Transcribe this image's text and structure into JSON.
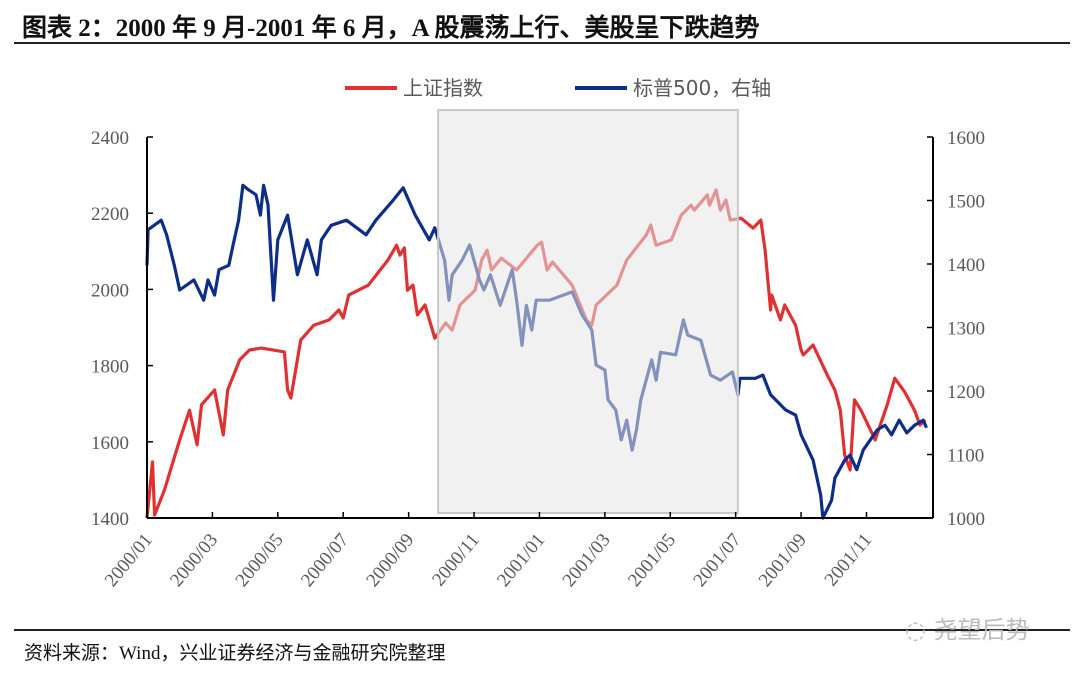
{
  "title": "图表 2：2000 年 9 月-2001 年 6 月，A 股震荡上行、美股呈下跌趋势",
  "source": "资料来源：Wind，兴业证券经济与金融研究院整理",
  "watermark": "尧望后势",
  "chart_data": {
    "type": "line",
    "title": "",
    "xlabel": "",
    "ylabel": "",
    "legend_position": "top",
    "grid": false,
    "xlim": [
      "2000-01-01",
      "2001-12-31"
    ],
    "x_ticks": [
      "2000/01",
      "2000/03",
      "2000/05",
      "2000/07",
      "2000/09",
      "2000/11",
      "2001/01",
      "2001/03",
      "2001/05",
      "2001/07",
      "2001/09",
      "2001/11"
    ],
    "y_left": {
      "lim": [
        1400,
        2400
      ],
      "ticks": [
        "1400",
        "1600",
        "1800",
        "2000",
        "2200",
        "2400"
      ]
    },
    "y_right": {
      "lim": [
        1000,
        1600
      ],
      "ticks": [
        "1000",
        "1100",
        "1200",
        "1300",
        "1400",
        "1500",
        "1600"
      ]
    },
    "highlight_period": [
      "2000-09-28",
      "2001-07-03"
    ],
    "highlight_color": "#e6e6e6",
    "series": [
      {
        "name": "上证指数",
        "axis": "left",
        "color": "#e03030",
        "points": [
          [
            "2000-01-01",
            1400
          ],
          [
            "2000-01-06",
            1547
          ],
          [
            "2000-01-08",
            1408
          ],
          [
            "2000-01-17",
            1473
          ],
          [
            "2000-02-01",
            1605
          ],
          [
            "2000-02-10",
            1683
          ],
          [
            "2000-02-17",
            1592
          ],
          [
            "2000-02-21",
            1697
          ],
          [
            "2000-03-03",
            1736
          ],
          [
            "2000-03-11",
            1618
          ],
          [
            "2000-03-15",
            1736
          ],
          [
            "2000-03-26",
            1815
          ],
          [
            "2000-04-05",
            1841
          ],
          [
            "2000-04-16",
            1846
          ],
          [
            "2000-05-07",
            1836
          ],
          [
            "2000-05-10",
            1736
          ],
          [
            "2000-05-13",
            1715
          ],
          [
            "2000-05-22",
            1867
          ],
          [
            "2000-06-04",
            1906
          ],
          [
            "2000-06-18",
            1920
          ],
          [
            "2000-06-27",
            1946
          ],
          [
            "2000-07-01",
            1925
          ],
          [
            "2000-07-06",
            1985
          ],
          [
            "2000-07-24",
            2011
          ],
          [
            "2000-08-12",
            2077
          ],
          [
            "2000-08-20",
            2116
          ],
          [
            "2000-08-23",
            2090
          ],
          [
            "2000-08-27",
            2109
          ],
          [
            "2000-08-30",
            1998
          ],
          [
            "2000-09-05",
            2011
          ],
          [
            "2000-09-09",
            1933
          ],
          [
            "2000-09-16",
            1959
          ],
          [
            "2000-09-25",
            1872
          ],
          [
            "2000-10-05",
            1912
          ],
          [
            "2000-10-11",
            1893
          ],
          [
            "2000-10-18",
            1959
          ],
          [
            "2000-11-02",
            1998
          ],
          [
            "2000-11-08",
            2077
          ],
          [
            "2000-11-13",
            2103
          ],
          [
            "2000-11-17",
            2051
          ],
          [
            "2000-11-26",
            2082
          ],
          [
            "2000-12-10",
            2051
          ],
          [
            "2000-12-29",
            2116
          ],
          [
            "2001-01-03",
            2124
          ],
          [
            "2001-01-08",
            2051
          ],
          [
            "2001-01-13",
            2072
          ],
          [
            "2001-02-01",
            2011
          ],
          [
            "2001-02-14",
            1920
          ],
          [
            "2001-02-19",
            1906
          ],
          [
            "2001-02-23",
            1959
          ],
          [
            "2001-03-12",
            2011
          ],
          [
            "2001-03-21",
            2077
          ],
          [
            "2001-04-09",
            2143
          ],
          [
            "2001-04-13",
            2169
          ],
          [
            "2001-04-18",
            2116
          ],
          [
            "2001-05-02",
            2130
          ],
          [
            "2001-05-11",
            2195
          ],
          [
            "2001-05-20",
            2221
          ],
          [
            "2001-05-23",
            2208
          ],
          [
            "2001-06-05",
            2248
          ],
          [
            "2001-06-07",
            2221
          ],
          [
            "2001-06-13",
            2261
          ],
          [
            "2001-06-17",
            2208
          ],
          [
            "2001-06-22",
            2235
          ],
          [
            "2001-06-26",
            2182
          ],
          [
            "2001-07-06",
            2187
          ],
          [
            "2001-07-17",
            2161
          ],
          [
            "2001-07-24",
            2182
          ],
          [
            "2001-07-28",
            2103
          ],
          [
            "2001-08-03",
            1946
          ],
          [
            "2001-08-04",
            1985
          ],
          [
            "2001-08-12",
            1920
          ],
          [
            "2001-08-16",
            1959
          ],
          [
            "2001-08-26",
            1906
          ],
          [
            "2001-09-01",
            1841
          ],
          [
            "2001-09-03",
            1828
          ],
          [
            "2001-09-12",
            1854
          ],
          [
            "2001-09-25",
            1775
          ],
          [
            "2001-10-02",
            1736
          ],
          [
            "2001-10-07",
            1683
          ],
          [
            "2001-10-11",
            1565
          ],
          [
            "2001-10-16",
            1526
          ],
          [
            "2001-10-20",
            1710
          ],
          [
            "2001-10-26",
            1683
          ],
          [
            "2001-11-09",
            1605
          ],
          [
            "2001-11-20",
            1697
          ],
          [
            "2001-11-27",
            1767
          ],
          [
            "2001-12-06",
            1731
          ],
          [
            "2001-12-15",
            1683
          ],
          [
            "2001-12-20",
            1644
          ],
          [
            "2001-12-25",
            1657
          ]
        ]
      },
      {
        "name": "标普500，右轴",
        "axis": "right",
        "color": "#0d2d8a",
        "points": [
          [
            "2000-01-01",
            1398
          ],
          [
            "2000-01-02",
            1454
          ],
          [
            "2000-01-14",
            1469
          ],
          [
            "2000-01-19",
            1446
          ],
          [
            "2000-01-26",
            1398
          ],
          [
            "2000-02-01",
            1359
          ],
          [
            "2000-02-14",
            1375
          ],
          [
            "2000-02-23",
            1343
          ],
          [
            "2000-02-27",
            1375
          ],
          [
            "2000-03-03",
            1351
          ],
          [
            "2000-03-07",
            1391
          ],
          [
            "2000-03-16",
            1398
          ],
          [
            "2000-03-20",
            1430
          ],
          [
            "2000-03-25",
            1469
          ],
          [
            "2000-03-29",
            1524
          ],
          [
            "2000-04-04",
            1517
          ],
          [
            "2000-04-11",
            1509
          ],
          [
            "2000-04-15",
            1477
          ],
          [
            "2000-04-18",
            1524
          ],
          [
            "2000-04-22",
            1493
          ],
          [
            "2000-04-27",
            1343
          ],
          [
            "2000-05-01",
            1438
          ],
          [
            "2000-05-10",
            1477
          ],
          [
            "2000-05-19",
            1383
          ],
          [
            "2000-05-28",
            1438
          ],
          [
            "2000-06-07",
            1383
          ],
          [
            "2000-06-11",
            1438
          ],
          [
            "2000-06-20",
            1461
          ],
          [
            "2000-07-04",
            1469
          ],
          [
            "2000-07-22",
            1446
          ],
          [
            "2000-07-31",
            1469
          ],
          [
            "2000-08-17",
            1501
          ],
          [
            "2000-08-26",
            1520
          ],
          [
            "2000-09-07",
            1477
          ],
          [
            "2000-09-20",
            1438
          ],
          [
            "2000-09-25",
            1457
          ],
          [
            "2000-10-04",
            1406
          ],
          [
            "2000-10-08",
            1343
          ],
          [
            "2000-10-11",
            1383
          ],
          [
            "2000-10-20",
            1406
          ],
          [
            "2000-10-27",
            1430
          ],
          [
            "2000-11-06",
            1375
          ],
          [
            "2000-11-10",
            1359
          ],
          [
            "2000-11-16",
            1383
          ],
          [
            "2000-11-25",
            1335
          ],
          [
            "2000-12-06",
            1391
          ],
          [
            "2000-12-10",
            1343
          ],
          [
            "2000-12-15",
            1272
          ],
          [
            "2000-12-19",
            1335
          ],
          [
            "2000-12-24",
            1296
          ],
          [
            "2000-12-28",
            1343
          ],
          [
            "2001-01-10",
            1343
          ],
          [
            "2001-02-01",
            1356
          ],
          [
            "2001-02-10",
            1320
          ],
          [
            "2001-02-19",
            1296
          ],
          [
            "2001-02-23",
            1241
          ],
          [
            "2001-03-01",
            1233
          ],
          [
            "2001-03-04",
            1186
          ],
          [
            "2001-03-11",
            1170
          ],
          [
            "2001-03-16",
            1123
          ],
          [
            "2001-03-21",
            1154
          ],
          [
            "2001-03-26",
            1107
          ],
          [
            "2001-03-30",
            1139
          ],
          [
            "2001-04-04",
            1186
          ],
          [
            "2001-04-14",
            1249
          ],
          [
            "2001-04-18",
            1217
          ],
          [
            "2001-04-22",
            1261
          ],
          [
            "2001-05-06",
            1257
          ],
          [
            "2001-05-13",
            1312
          ],
          [
            "2001-05-17",
            1288
          ],
          [
            "2001-05-29",
            1280
          ],
          [
            "2001-06-08",
            1225
          ],
          [
            "2001-06-17",
            1217
          ],
          [
            "2001-06-28",
            1230
          ],
          [
            "2001-07-03",
            1194
          ],
          [
            "2001-07-05",
            1220
          ],
          [
            "2001-07-19",
            1220
          ],
          [
            "2001-07-26",
            1225
          ],
          [
            "2001-08-03",
            1194
          ],
          [
            "2001-08-17",
            1170
          ],
          [
            "2001-08-26",
            1162
          ],
          [
            "2001-09-01",
            1131
          ],
          [
            "2001-09-12",
            1091
          ],
          [
            "2001-09-19",
            1036
          ],
          [
            "2001-09-21",
            1000
          ],
          [
            "2001-09-29",
            1028
          ],
          [
            "2001-10-02",
            1063
          ],
          [
            "2001-10-11",
            1091
          ],
          [
            "2001-10-16",
            1099
          ],
          [
            "2001-10-22",
            1076
          ],
          [
            "2001-10-28",
            1107
          ],
          [
            "2001-11-11",
            1139
          ],
          [
            "2001-11-18",
            1146
          ],
          [
            "2001-11-24",
            1131
          ],
          [
            "2001-12-01",
            1154
          ],
          [
            "2001-12-08",
            1134
          ],
          [
            "2001-12-15",
            1146
          ],
          [
            "2001-12-23",
            1154
          ],
          [
            "2001-12-26",
            1142
          ]
        ]
      }
    ]
  }
}
